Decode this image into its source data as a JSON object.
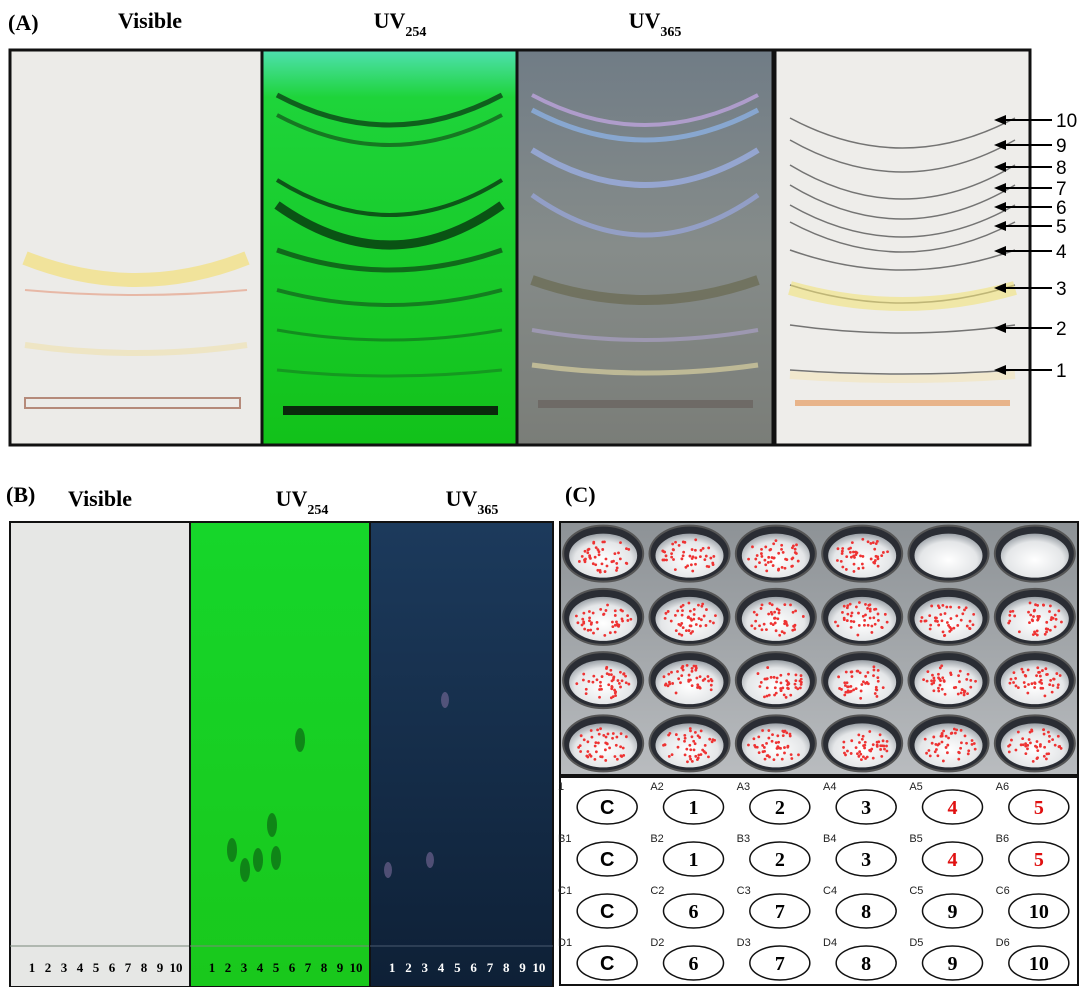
{
  "panel_a": {
    "label": "(A)",
    "headings": [
      {
        "text": "Visible"
      },
      {
        "text": "UV",
        "sub": "254"
      },
      {
        "text": "UV",
        "sub": "365"
      }
    ],
    "fractions": [
      "10",
      "9",
      "8",
      "7",
      "6",
      "5",
      "4",
      "3",
      "2",
      "1"
    ]
  },
  "panel_b": {
    "label": "(B)",
    "headings": [
      {
        "text": "Visible"
      },
      {
        "text": "UV",
        "sub": "254"
      },
      {
        "text": "UV",
        "sub": "365"
      }
    ],
    "lanes": [
      "1",
      "2",
      "3",
      "4",
      "5",
      "6",
      "7",
      "8",
      "9",
      "10"
    ]
  },
  "panel_c": {
    "label": "(C)",
    "wells": [
      [
        {
          "id": "1",
          "text": "C"
        },
        {
          "id": "A2",
          "text": "1"
        },
        {
          "id": "A3",
          "text": "2"
        },
        {
          "id": "A4",
          "text": "3"
        },
        {
          "id": "A5",
          "text": "4",
          "color": "#e01010"
        },
        {
          "id": "A6",
          "text": "5",
          "color": "#e01010"
        }
      ],
      [
        {
          "id": "B1",
          "text": "C"
        },
        {
          "id": "B2",
          "text": "1"
        },
        {
          "id": "B3",
          "text": "2"
        },
        {
          "id": "B4",
          "text": "3"
        },
        {
          "id": "B5",
          "text": "4",
          "color": "#e01010"
        },
        {
          "id": "B6",
          "text": "5",
          "color": "#e01010"
        }
      ],
      [
        {
          "id": "C1",
          "text": "C"
        },
        {
          "id": "C2",
          "text": "6"
        },
        {
          "id": "C3",
          "text": "7"
        },
        {
          "id": "C4",
          "text": "8"
        },
        {
          "id": "C5",
          "text": "9"
        },
        {
          "id": "C6",
          "text": "10"
        }
      ],
      [
        {
          "id": "D1",
          "text": "C"
        },
        {
          "id": "D2",
          "text": "6"
        },
        {
          "id": "D3",
          "text": "7"
        },
        {
          "id": "D4",
          "text": "8"
        },
        {
          "id": "D5",
          "text": "9"
        },
        {
          "id": "D6",
          "text": "10"
        }
      ]
    ]
  }
}
